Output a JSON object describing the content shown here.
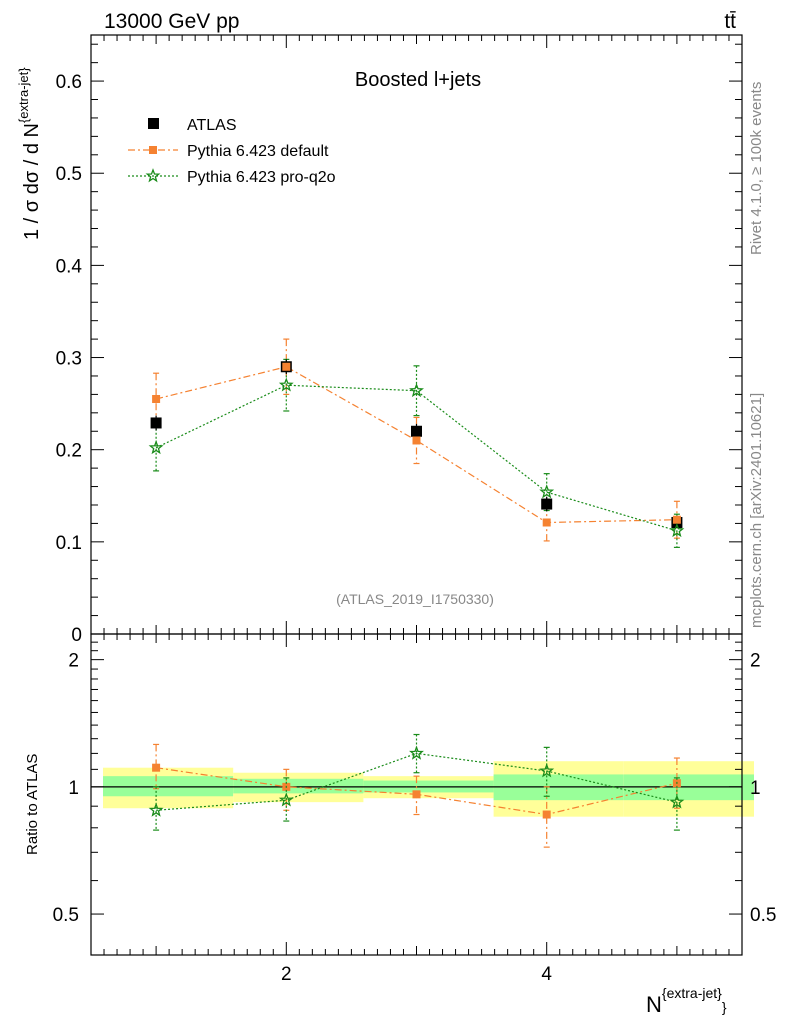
{
  "header": {
    "energy_label": "13000 GeV pp",
    "process_label": "tt̄",
    "rivet_label": "Rivet 4.1.0, ≥ 100k events",
    "site_label": "mcplots.cern.ch [arXiv:2401.10621]",
    "analysis_tag": "(ATLAS_2019_I1750330)"
  },
  "colors": {
    "atlas": "#000000",
    "default": "#f58231",
    "proq2o": "#1a8c1a",
    "band_inner": "#99ff99",
    "band_outer": "#ffff99"
  },
  "chart_data": [
    {
      "type": "scatter",
      "panel": "main",
      "title": "Boosted l+jets",
      "ylabel_main": "1 / σ dσ / d N",
      "ylabel_sup": "{extra-jet}",
      "xlabel_main": "N",
      "xlabel_sup": "{extra-jet}",
      "xlabel_close": "}",
      "xlim": [
        0.5,
        5.5
      ],
      "ylim": [
        0.0,
        0.65
      ],
      "yticks": [
        0,
        0.1,
        0.2,
        0.3,
        0.4,
        0.5,
        0.6
      ],
      "ytick_labels": [
        "0",
        "0.1",
        "0.2",
        "0.3",
        "0.4",
        "0.5",
        "0.6"
      ],
      "xticks": [
        2,
        4
      ],
      "xtick_labels": [
        "2",
        "4"
      ],
      "legend_position": "top-left",
      "x": [
        1,
        2,
        3,
        4,
        5
      ],
      "series": [
        {
          "name": "ATLAS",
          "key": "atlas",
          "marker": "square",
          "values": [
            0.229,
            0.29,
            0.22,
            0.141,
            0.121
          ],
          "errors": [
            0.008,
            0.008,
            0.008,
            0.008,
            0.006
          ]
        },
        {
          "name": "Pythia 6.423 default",
          "key": "default",
          "marker": "small-square",
          "line": "dash-dot",
          "values": [
            0.255,
            0.29,
            0.21,
            0.121,
            0.124
          ],
          "errors": [
            0.028,
            0.03,
            0.025,
            0.02,
            0.02
          ]
        },
        {
          "name": "Pythia 6.423 pro-q2o",
          "key": "proq2o",
          "marker": "star",
          "line": "dotted",
          "values": [
            0.202,
            0.27,
            0.264,
            0.154,
            0.112
          ],
          "errors": [
            0.025,
            0.028,
            0.027,
            0.02,
            0.018
          ]
        }
      ]
    },
    {
      "type": "scatter",
      "panel": "ratio",
      "ylabel": "Ratio to ATLAS",
      "ylim": [
        0.4,
        2.3
      ],
      "yticks": [
        0.5,
        1,
        2
      ],
      "ytick_labels": [
        "0.5",
        "1",
        "2"
      ],
      "bins": [
        [
          0.5,
          1.5
        ],
        [
          1.5,
          2.5
        ],
        [
          2.5,
          3.5
        ],
        [
          3.5,
          4.5
        ],
        [
          4.5,
          5.5
        ]
      ],
      "band_inner": [
        [
          0.95,
          1.06
        ],
        [
          0.965,
          1.045
        ],
        [
          0.97,
          1.035
        ],
        [
          0.93,
          1.07
        ],
        [
          0.93,
          1.07
        ]
      ],
      "band_outer": [
        [
          0.89,
          1.11
        ],
        [
          0.92,
          1.08
        ],
        [
          0.94,
          1.06
        ],
        [
          0.85,
          1.15
        ],
        [
          0.85,
          1.15
        ]
      ],
      "x": [
        1,
        2,
        3,
        4,
        5
      ],
      "series": [
        {
          "name": "Pythia 6.423 default",
          "key": "default",
          "values": [
            1.11,
            1.0,
            0.96,
            0.86,
            1.02
          ],
          "err_lo": [
            0.12,
            0.12,
            0.1,
            0.14,
            0.13
          ],
          "err_hi": [
            0.15,
            0.1,
            0.1,
            0.14,
            0.15
          ]
        },
        {
          "name": "Pythia 6.423 pro-q2o",
          "key": "proq2o",
          "values": [
            0.88,
            0.93,
            1.2,
            1.09,
            0.92
          ],
          "err_lo": [
            0.09,
            0.1,
            0.12,
            0.14,
            0.13
          ],
          "err_hi": [
            0.12,
            0.12,
            0.13,
            0.15,
            0.13
          ]
        }
      ]
    }
  ]
}
